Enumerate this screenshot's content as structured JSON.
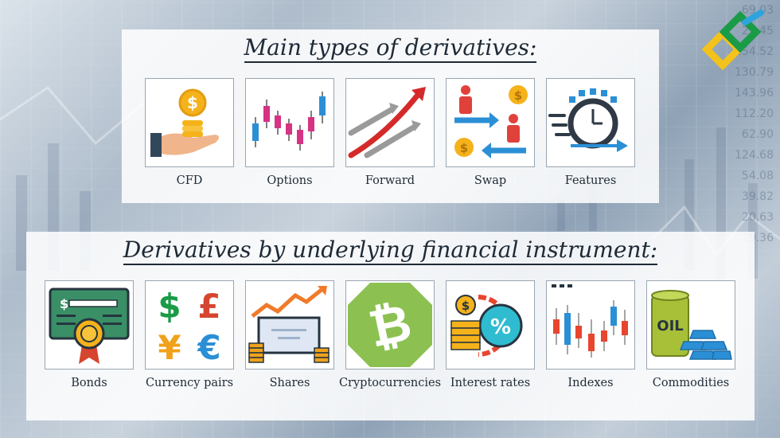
{
  "background_numbers": [
    "69.03",
    "29.45",
    "154.52",
    "130.79",
    "143.96",
    "112.20",
    "62.90",
    "124.68",
    "54.08",
    "39.82",
    "20.63",
    "29.36"
  ],
  "top_section": {
    "title": "Main types of derivatives:",
    "items": [
      {
        "label": "CFD",
        "icon": "hand-coins-icon"
      },
      {
        "label": "Options",
        "icon": "candlestick-chart-icon"
      },
      {
        "label": "Forward",
        "icon": "forward-arrows-icon"
      },
      {
        "label": "Swap",
        "icon": "swap-exchange-icon"
      },
      {
        "label": "Features",
        "icon": "stopwatch-icon"
      }
    ]
  },
  "bottom_section": {
    "title": "Derivatives by underlying financial instrument:",
    "items": [
      {
        "label": "Bonds",
        "icon": "bond-certificate-icon"
      },
      {
        "label": "Currency pairs",
        "icon": "currency-symbols-icon"
      },
      {
        "label": "Shares",
        "icon": "shares-certificate-icon"
      },
      {
        "label": "Cryptocurrencies",
        "icon": "bitcoin-icon"
      },
      {
        "label": "Interest rates",
        "icon": "interest-rate-icon"
      },
      {
        "label": "Indexes",
        "icon": "index-chart-icon"
      },
      {
        "label": "Commodities",
        "icon": "oil-gold-icon"
      }
    ],
    "currency_symbols": [
      "$",
      "£",
      "¥",
      "€"
    ],
    "commodity_text": "OIL",
    "bond_symbol": "$",
    "interest_symbols": [
      "$",
      "%"
    ]
  },
  "colors": {
    "heading": "#1e2a36",
    "logo_green": "#1a9b47",
    "logo_yellow": "#f3c21b",
    "logo_blue": "#2fa3dc",
    "bitcoin_green": "#8cc152",
    "bond_green": "#3a8f66",
    "coin_gold": "#f5b21b",
    "arrow_red": "#d42a2a",
    "arrow_blue": "#2b8fd6"
  }
}
